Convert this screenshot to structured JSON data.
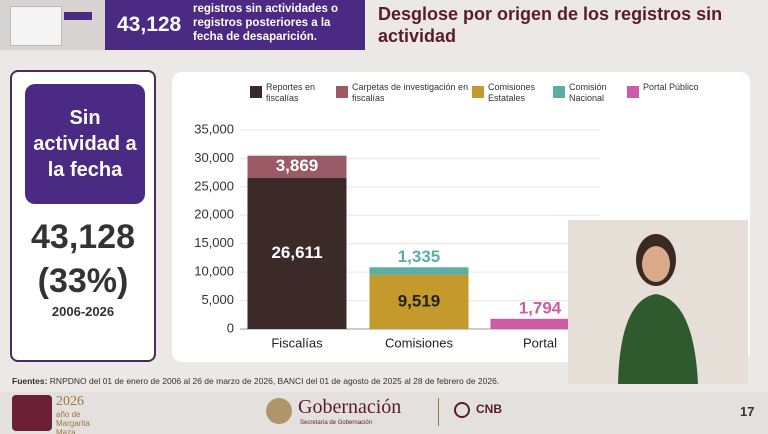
{
  "header": {
    "number": "43,128",
    "text": "registros sin actividades o registros posteriores a la fecha de desaparición.",
    "title": "Desglose por origen de los registros sin actividad"
  },
  "summary": {
    "label": "Sin actividad a la fecha",
    "total": "43,128",
    "percent": "(33%)",
    "period": "2006-2026"
  },
  "chart_data": {
    "type": "bar",
    "stacked": true,
    "categories": [
      "Fiscalías",
      "Comisiones",
      "Portal"
    ],
    "series": [
      {
        "name": "Reportes en fiscalías",
        "color": "#3b2a27",
        "values": [
          26611,
          null,
          null
        ],
        "value_labels": [
          "26,611",
          null,
          null
        ]
      },
      {
        "name": "Carpetas de investigación en fiscalías",
        "color": "#9a5a66",
        "values": [
          3869,
          null,
          null
        ],
        "value_labels": [
          "3,869",
          null,
          null
        ]
      },
      {
        "name": "Comisiones Estatales",
        "color": "#c49a2c",
        "values": [
          null,
          9519,
          null
        ],
        "value_labels": [
          null,
          "9,519",
          null
        ]
      },
      {
        "name": "Comisión Nacional",
        "color": "#5aaea3",
        "values": [
          null,
          1335,
          null
        ],
        "value_labels": [
          null,
          "1,335",
          null
        ]
      },
      {
        "name": "Portal Público",
        "color": "#cf5aa5",
        "values": [
          null,
          null,
          1794
        ],
        "value_labels": [
          null,
          null,
          "1,794"
        ]
      }
    ],
    "ylim": [
      0,
      35000
    ],
    "yticks": [
      0,
      {
        "value": 5000,
        "label": "5,000"
      },
      {
        "value": 10000,
        "label": "10,000"
      },
      {
        "value": 15000,
        "label": "15,000"
      },
      {
        "value": 20000,
        "label": "20,000"
      },
      {
        "value": 25000,
        "label": "25,000"
      },
      {
        "value": 30000,
        "label": "30,000"
      },
      {
        "value": 35000,
        "label": "35,000"
      }
    ],
    "grid": true
  },
  "footer": {
    "source_label": "Fuentes:",
    "source": "RNPDNO del 01 de enero de 2006 al 26 de marzo de 2026, BANCI del 01 de agosto de 2025 al 28 de febrero de 2026.",
    "year": "2026",
    "year_text": "año de Margarita Maza",
    "brand": "Gobernación",
    "brand_sub": "Secretaría de Gobernación",
    "cnb": "CNB",
    "page": "17"
  }
}
